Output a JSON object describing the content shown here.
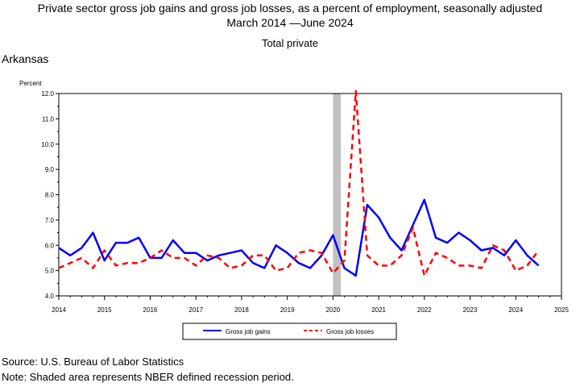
{
  "header": {
    "title_line1": "Private sector gross job gains and gross job losses, as a percent of employment, seasonally adjusted",
    "title_line2": "March 2014 —June 2024",
    "subtitle": "Total private",
    "state": "Arkansas"
  },
  "footer": {
    "source": "Source: U.S. Bureau of Labor Statistics",
    "note": "Note: Shaded area represents NBER defined recession period."
  },
  "chart_data": {
    "type": "line",
    "ylabel": "Percent",
    "ylim": [
      4.0,
      12.0
    ],
    "xlim": [
      2014,
      2025
    ],
    "x_ticks": [
      "2014",
      "2015",
      "2016",
      "2017",
      "2018",
      "2019",
      "2020",
      "2021",
      "2022",
      "2023",
      "2024",
      "2025"
    ],
    "y_ticks": [
      "4.0",
      "5.0",
      "6.0",
      "7.0",
      "8.0",
      "9.0",
      "10.0",
      "11.0",
      "12.0"
    ],
    "recession": {
      "start": 2020.0,
      "end": 2020.17
    },
    "colors": {
      "gains": "#0000ff",
      "losses": "#ff0000",
      "recession": "#c0c0c0"
    },
    "x_start_year": 2014.0,
    "x_step": 0.25,
    "series": [
      {
        "name": "Gross job gains",
        "values": [
          5.9,
          5.6,
          5.9,
          6.5,
          5.4,
          6.1,
          6.1,
          6.3,
          5.5,
          5.5,
          6.2,
          5.7,
          5.7,
          5.4,
          5.6,
          5.7,
          5.8,
          5.3,
          5.1,
          6.0,
          5.7,
          5.3,
          5.1,
          5.6,
          6.4,
          5.1,
          4.8,
          7.6,
          7.1,
          6.3,
          5.8,
          6.8,
          7.8,
          6.3,
          6.1,
          6.5,
          6.2,
          5.8,
          5.9,
          5.6,
          6.2,
          5.6,
          5.2
        ]
      },
      {
        "name": "Gross job losses",
        "values": [
          5.1,
          5.3,
          5.5,
          5.1,
          5.8,
          5.2,
          5.3,
          5.3,
          5.5,
          5.8,
          5.5,
          5.5,
          5.2,
          5.6,
          5.5,
          5.1,
          5.2,
          5.6,
          5.6,
          5.0,
          5.1,
          5.7,
          5.8,
          5.7,
          4.9,
          5.4,
          12.1,
          5.6,
          5.2,
          5.2,
          5.6,
          6.7,
          4.8,
          5.7,
          5.5,
          5.2,
          5.2,
          5.1,
          6.0,
          5.8,
          5.0,
          5.2,
          5.8
        ]
      }
    ]
  }
}
